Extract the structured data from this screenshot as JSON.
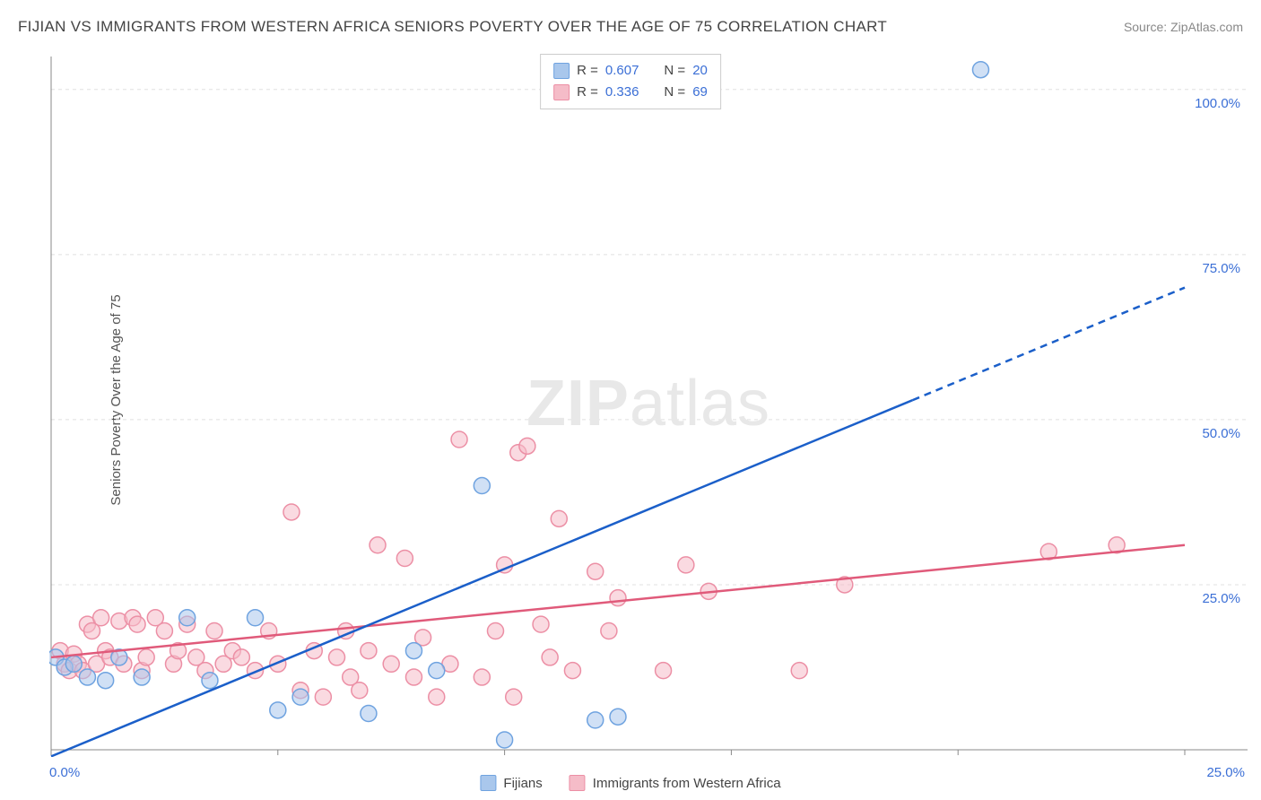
{
  "title": "FIJIAN VS IMMIGRANTS FROM WESTERN AFRICA SENIORS POVERTY OVER THE AGE OF 75 CORRELATION CHART",
  "source": "Source: ZipAtlas.com",
  "y_axis_label": "Seniors Poverty Over the Age of 75",
  "watermark_bold": "ZIP",
  "watermark_light": "atlas",
  "chart": {
    "type": "scatter",
    "xlim": [
      0,
      25
    ],
    "ylim": [
      0,
      105
    ],
    "x_ticks": [
      0,
      5,
      10,
      15,
      20,
      25
    ],
    "x_tick_labels": [
      "0.0%",
      "",
      "",
      "",
      "",
      "25.0%"
    ],
    "y_ticks": [
      25,
      50,
      75,
      100
    ],
    "y_tick_labels": [
      "25.0%",
      "50.0%",
      "75.0%",
      "100.0%"
    ],
    "grid_color": "#e0e0e0",
    "axis_color": "#888888",
    "background_color": "#ffffff",
    "marker_radius": 9,
    "marker_stroke_width": 1.5,
    "line_width": 2.5,
    "series": [
      {
        "name": "Fijians",
        "color_fill": "#a9c7ec",
        "color_stroke": "#6fa3e0",
        "line_color": "#1b5fc9",
        "r_value": "0.607",
        "n_value": "20",
        "trend": {
          "x1": 0,
          "y1": -1,
          "x2": 25,
          "y2": 70,
          "dash_from_x": 19
        },
        "points": [
          [
            0.1,
            14
          ],
          [
            0.3,
            12.5
          ],
          [
            0.5,
            13
          ],
          [
            0.8,
            11
          ],
          [
            1.2,
            10.5
          ],
          [
            1.5,
            14
          ],
          [
            2.0,
            11
          ],
          [
            3.0,
            20
          ],
          [
            3.5,
            10.5
          ],
          [
            4.5,
            20
          ],
          [
            5.0,
            6
          ],
          [
            5.5,
            8
          ],
          [
            7.0,
            5.5
          ],
          [
            8.0,
            15
          ],
          [
            8.5,
            12
          ],
          [
            9.5,
            40
          ],
          [
            10.0,
            1.5
          ],
          [
            12.0,
            4.5
          ],
          [
            12.5,
            5
          ],
          [
            20.5,
            103
          ]
        ]
      },
      {
        "name": "Immigrants from Western Africa",
        "color_fill": "#f5bcc8",
        "color_stroke": "#ec8fa5",
        "line_color": "#e05a7a",
        "r_value": "0.336",
        "n_value": "69",
        "trend": {
          "x1": 0,
          "y1": 14,
          "x2": 25,
          "y2": 31,
          "dash_from_x": 25
        },
        "points": [
          [
            0.2,
            15
          ],
          [
            0.3,
            13
          ],
          [
            0.4,
            12
          ],
          [
            0.5,
            14.5
          ],
          [
            0.6,
            13
          ],
          [
            0.7,
            12
          ],
          [
            0.8,
            19
          ],
          [
            0.9,
            18
          ],
          [
            1.0,
            13
          ],
          [
            1.1,
            20
          ],
          [
            1.2,
            15
          ],
          [
            1.3,
            14
          ],
          [
            1.5,
            19.5
          ],
          [
            1.6,
            13
          ],
          [
            1.8,
            20
          ],
          [
            1.9,
            19
          ],
          [
            2.0,
            12
          ],
          [
            2.1,
            14
          ],
          [
            2.3,
            20
          ],
          [
            2.5,
            18
          ],
          [
            2.7,
            13
          ],
          [
            2.8,
            15
          ],
          [
            3.0,
            19
          ],
          [
            3.2,
            14
          ],
          [
            3.4,
            12
          ],
          [
            3.6,
            18
          ],
          [
            3.8,
            13
          ],
          [
            4.0,
            15
          ],
          [
            4.2,
            14
          ],
          [
            4.5,
            12
          ],
          [
            4.8,
            18
          ],
          [
            5.0,
            13
          ],
          [
            5.3,
            36
          ],
          [
            5.5,
            9
          ],
          [
            5.8,
            15
          ],
          [
            6.0,
            8
          ],
          [
            6.3,
            14
          ],
          [
            6.5,
            18
          ],
          [
            6.6,
            11
          ],
          [
            6.8,
            9
          ],
          [
            7.0,
            15
          ],
          [
            7.2,
            31
          ],
          [
            7.5,
            13
          ],
          [
            7.8,
            29
          ],
          [
            8.0,
            11
          ],
          [
            8.2,
            17
          ],
          [
            8.5,
            8
          ],
          [
            8.8,
            13
          ],
          [
            9.0,
            47
          ],
          [
            9.5,
            11
          ],
          [
            9.8,
            18
          ],
          [
            10.0,
            28
          ],
          [
            10.2,
            8
          ],
          [
            10.3,
            45
          ],
          [
            10.5,
            46
          ],
          [
            10.8,
            19
          ],
          [
            11.0,
            14
          ],
          [
            11.2,
            35
          ],
          [
            11.5,
            12
          ],
          [
            12.0,
            27
          ],
          [
            12.3,
            18
          ],
          [
            12.5,
            23
          ],
          [
            13.5,
            12
          ],
          [
            14.0,
            28
          ],
          [
            14.5,
            24
          ],
          [
            16.5,
            12
          ],
          [
            17.5,
            25
          ],
          [
            22.0,
            30
          ],
          [
            23.5,
            31
          ]
        ]
      }
    ]
  },
  "bottom_legend": {
    "s1_label": "Fijians",
    "s2_label": "Immigrants from Western Africa"
  },
  "stats_labels": {
    "r": "R =",
    "n": "N ="
  }
}
